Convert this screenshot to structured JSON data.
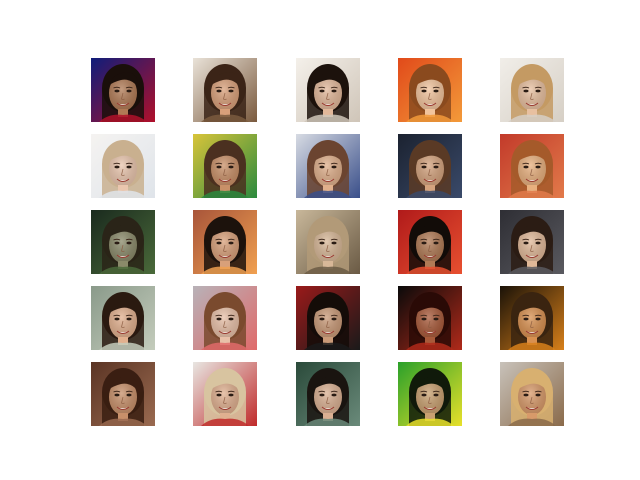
{
  "figure": {
    "grid": {
      "rows": 5,
      "cols": 5
    },
    "tiles": [
      {
        "label": "generated-face-r1c1",
        "bg": "#0f1d7a",
        "bg2": "#b0102a",
        "skin": "#b07a55",
        "hair": "#1a0f0a"
      },
      {
        "label": "generated-face-r1c2",
        "bg": "#e9e2d8",
        "bg2": "#7a5a3e",
        "skin": "#d9a07a",
        "hair": "#3b2417"
      },
      {
        "label": "generated-face-r1c3",
        "bg": "#f4f0ea",
        "bg2": "#cfc5b8",
        "skin": "#e2b89a",
        "hair": "#1c120c"
      },
      {
        "label": "generated-face-r1c4",
        "bg": "#e14a1a",
        "bg2": "#f39a3a",
        "skin": "#f2c49d",
        "hair": "#8a4a1e"
      },
      {
        "label": "generated-face-r1c5",
        "bg": "#f1eee9",
        "bg2": "#d6cfc5",
        "skin": "#e8c0a0",
        "hair": "#c49a63"
      },
      {
        "label": "generated-face-r2c1",
        "bg": "#f5f3f1",
        "bg2": "#dfe4ea",
        "skin": "#eac6ae",
        "hair": "#c9b08f"
      },
      {
        "label": "generated-face-r2c2",
        "bg": "#d8c43a",
        "bg2": "#2b8a3e",
        "skin": "#c99068",
        "hair": "#4b3020"
      },
      {
        "label": "generated-face-r2c3",
        "bg": "#d7dbe3",
        "bg2": "#3a4f8a",
        "skin": "#e0b08c",
        "hair": "#6b4430"
      },
      {
        "label": "generated-face-r2c4",
        "bg": "#1b2230",
        "bg2": "#3a4a6a",
        "skin": "#d4a37e",
        "hair": "#5a3a25"
      },
      {
        "label": "generated-face-r2c5",
        "bg": "#c23a2a",
        "bg2": "#e27a4a",
        "skin": "#e8b07e",
        "hair": "#a55a2a"
      },
      {
        "label": "generated-face-r3c1",
        "bg": "#1a2a1e",
        "bg2": "#4a6a3a",
        "skin": "#8a8a6a",
        "hair": "#2a2418"
      },
      {
        "label": "generated-face-r3c2",
        "bg": "#a8553a",
        "bg2": "#f0a050",
        "skin": "#d8a07a",
        "hair": "#1c120c"
      },
      {
        "label": "generated-face-r3c3",
        "bg": "#c8b79a",
        "bg2": "#6a5a44",
        "skin": "#d8b898",
        "hair": "#b29a78"
      },
      {
        "label": "generated-face-r3c4",
        "bg": "#b01a1a",
        "bg2": "#e85030",
        "skin": "#b07a55",
        "hair": "#120c08"
      },
      {
        "label": "generated-face-r3c5",
        "bg": "#2e2e34",
        "bg2": "#5a5a60",
        "skin": "#e0b898",
        "hair": "#2b1c14"
      },
      {
        "label": "generated-face-r4c1",
        "bg": "#8a9a8a",
        "bg2": "#c4ccbc",
        "skin": "#e2b08e",
        "hair": "#2a1a10"
      },
      {
        "label": "generated-face-r4c2",
        "bg": "#b8b2b8",
        "bg2": "#e06a6a",
        "skin": "#e8c0a8",
        "hair": "#7a4a2e"
      },
      {
        "label": "generated-face-r4c3",
        "bg": "#9a1a1a",
        "bg2": "#1a1a1a",
        "skin": "#c99a78",
        "hair": "#140c08"
      },
      {
        "label": "generated-face-r4c4",
        "bg": "#0a0a0a",
        "bg2": "#b02a1a",
        "skin": "#a85a3a",
        "hair": "#2a0a06"
      },
      {
        "label": "generated-face-r4c5",
        "bg": "#1a1208",
        "bg2": "#d8801a",
        "skin": "#d89050",
        "hair": "#3a2410"
      },
      {
        "label": "generated-face-r5c1",
        "bg": "#5a3424",
        "bg2": "#9a6a50",
        "skin": "#c8906a",
        "hair": "#3a1e12"
      },
      {
        "label": "generated-face-r5c2",
        "bg": "#e8e6e2",
        "bg2": "#c02a2a",
        "skin": "#e0b090",
        "hair": "#d8c4a0"
      },
      {
        "label": "generated-face-r5c3",
        "bg": "#2a4a3a",
        "bg2": "#6a8a7a",
        "skin": "#dab092",
        "hair": "#1a1410"
      },
      {
        "label": "generated-face-r5c4",
        "bg": "#2aa02a",
        "bg2": "#e8e02a",
        "skin": "#c8a070",
        "hair": "#101a0a"
      },
      {
        "label": "generated-face-r5c5",
        "bg": "#c8c2ba",
        "bg2": "#8a6a4a",
        "skin": "#d89a6a",
        "hair": "#d8b070"
      }
    ]
  }
}
